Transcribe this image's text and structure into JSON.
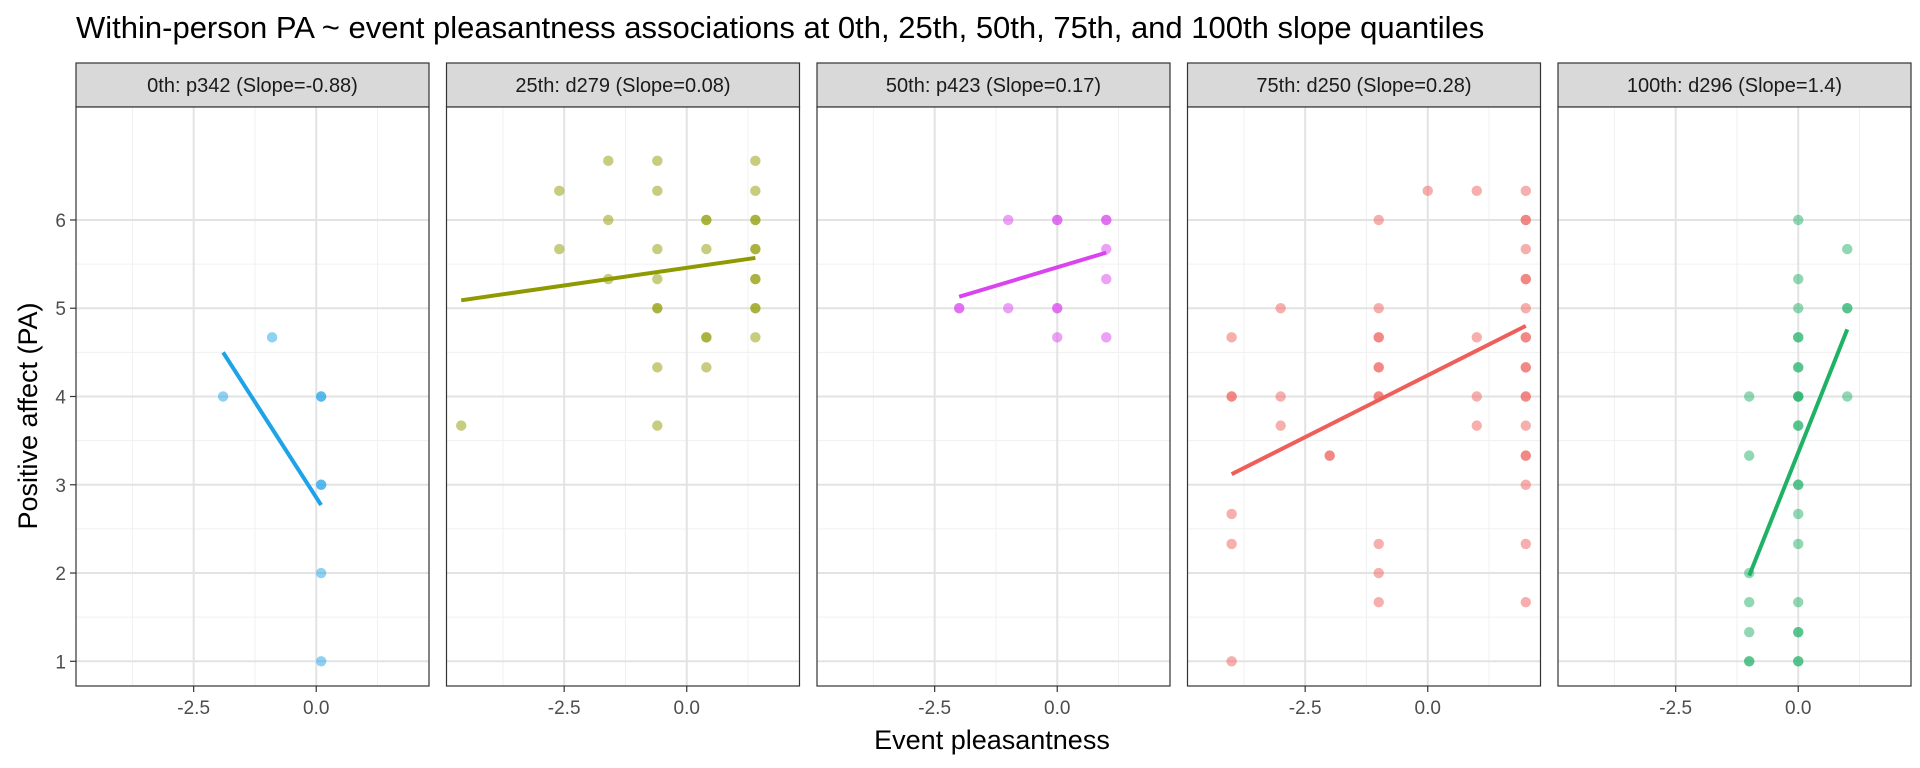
{
  "chart_data": {
    "type": "scatter",
    "title": "Within-person PA ~ event pleasantness associations at 0th, 25th, 50th, 75th, and 100th slope quantiles",
    "xlabel": "Event pleasantness",
    "ylabel": "Positive affect (PA)",
    "xlim": [
      -4.9,
      2.3
    ],
    "ylim": [
      0.72,
      7.28
    ],
    "x_ticks": [
      -2.5,
      0.0
    ],
    "x_tick_labels": [
      "-2.5",
      "0.0"
    ],
    "y_ticks": [
      1,
      2,
      3,
      4,
      5,
      6
    ],
    "y_tick_labels": [
      "1",
      "2",
      "3",
      "4",
      "5",
      "6"
    ],
    "grid": true,
    "legend": "none",
    "panels": [
      {
        "strip": "0th: p342 (Slope=-0.88)",
        "color": "#1FA3E8",
        "points": [
          [
            -1.9,
            4.0
          ],
          [
            -0.9,
            4.67
          ],
          [
            0.1,
            4.0
          ],
          [
            0.1,
            4.0
          ],
          [
            0.1,
            3.0
          ],
          [
            0.1,
            3.0
          ],
          [
            0.1,
            2.0
          ],
          [
            0.1,
            1.0
          ]
        ],
        "fit": [
          [
            -1.9,
            4.5
          ],
          [
            0.1,
            2.77
          ]
        ]
      },
      {
        "strip": "25th: d279 (Slope=0.08)",
        "color": "#8F9A00",
        "points": [
          [
            -4.6,
            3.67
          ],
          [
            -2.6,
            6.33
          ],
          [
            -2.6,
            5.67
          ],
          [
            -1.6,
            6.67
          ],
          [
            -1.6,
            6.0
          ],
          [
            -1.6,
            5.33
          ],
          [
            -0.6,
            6.67
          ],
          [
            -0.6,
            6.33
          ],
          [
            -0.6,
            5.67
          ],
          [
            -0.6,
            5.33
          ],
          [
            -0.6,
            5.0
          ],
          [
            -0.6,
            5.0
          ],
          [
            -0.6,
            4.33
          ],
          [
            -0.6,
            3.67
          ],
          [
            0.4,
            6.0
          ],
          [
            0.4,
            6.0
          ],
          [
            0.4,
            5.67
          ],
          [
            0.4,
            4.67
          ],
          [
            0.4,
            4.67
          ],
          [
            0.4,
            4.33
          ],
          [
            1.4,
            6.67
          ],
          [
            1.4,
            6.33
          ],
          [
            1.4,
            6.0
          ],
          [
            1.4,
            6.0
          ],
          [
            1.4,
            5.67
          ],
          [
            1.4,
            5.67
          ],
          [
            1.4,
            5.33
          ],
          [
            1.4,
            5.33
          ],
          [
            1.4,
            5.0
          ],
          [
            1.4,
            5.0
          ],
          [
            1.4,
            4.67
          ]
        ],
        "fit": [
          [
            -4.6,
            5.09
          ],
          [
            1.4,
            5.57
          ]
        ]
      },
      {
        "strip": "50th: p423 (Slope=0.17)",
        "color": "#D944EE",
        "points": [
          [
            -2.0,
            5.0
          ],
          [
            -2.0,
            5.0
          ],
          [
            -1.0,
            6.0
          ],
          [
            -1.0,
            5.0
          ],
          [
            0.0,
            6.0
          ],
          [
            0.0,
            6.0
          ],
          [
            0.0,
            5.0
          ],
          [
            0.0,
            5.0
          ],
          [
            0.0,
            4.67
          ],
          [
            1.0,
            6.0
          ],
          [
            1.0,
            6.0
          ],
          [
            1.0,
            5.67
          ],
          [
            1.0,
            5.33
          ],
          [
            1.0,
            4.67
          ]
        ],
        "fit": [
          [
            -2.0,
            5.13
          ],
          [
            1.0,
            5.63
          ]
        ]
      },
      {
        "strip": "75th: d250 (Slope=0.28)",
        "color": "#EE5F5B",
        "points": [
          [
            -4.0,
            4.67
          ],
          [
            -4.0,
            4.0
          ],
          [
            -4.0,
            4.0
          ],
          [
            -4.0,
            2.67
          ],
          [
            -4.0,
            2.33
          ],
          [
            -4.0,
            1.0
          ],
          [
            -3.0,
            5.0
          ],
          [
            -3.0,
            4.0
          ],
          [
            -3.0,
            3.67
          ],
          [
            -2.0,
            3.33
          ],
          [
            -2.0,
            3.33
          ],
          [
            -1.0,
            6.0
          ],
          [
            -1.0,
            5.0
          ],
          [
            -1.0,
            4.67
          ],
          [
            -1.0,
            4.67
          ],
          [
            -1.0,
            4.33
          ],
          [
            -1.0,
            4.33
          ],
          [
            -1.0,
            4.0
          ],
          [
            -1.0,
            4.0
          ],
          [
            -1.0,
            2.33
          ],
          [
            -1.0,
            2.0
          ],
          [
            -1.0,
            1.67
          ],
          [
            0.0,
            6.33
          ],
          [
            1.0,
            6.33
          ],
          [
            1.0,
            4.67
          ],
          [
            1.0,
            4.0
          ],
          [
            1.0,
            3.67
          ],
          [
            2.0,
            6.33
          ],
          [
            2.0,
            6.0
          ],
          [
            2.0,
            6.0
          ],
          [
            2.0,
            5.67
          ],
          [
            2.0,
            5.33
          ],
          [
            2.0,
            5.33
          ],
          [
            2.0,
            5.0
          ],
          [
            2.0,
            4.67
          ],
          [
            2.0,
            4.67
          ],
          [
            2.0,
            4.33
          ],
          [
            2.0,
            4.33
          ],
          [
            2.0,
            4.0
          ],
          [
            2.0,
            4.0
          ],
          [
            2.0,
            3.67
          ],
          [
            2.0,
            3.33
          ],
          [
            2.0,
            3.33
          ],
          [
            2.0,
            3.0
          ],
          [
            2.0,
            2.33
          ],
          [
            2.0,
            1.67
          ]
        ],
        "fit": [
          [
            -4.0,
            3.12
          ],
          [
            2.0,
            4.8
          ]
        ]
      },
      {
        "strip": "100th: d296 (Slope=1.4)",
        "color": "#1FB267",
        "points": [
          [
            -1.0,
            4.0
          ],
          [
            -1.0,
            3.33
          ],
          [
            -1.0,
            2.0
          ],
          [
            -1.0,
            1.67
          ],
          [
            -1.0,
            1.33
          ],
          [
            -1.0,
            1.0
          ],
          [
            -1.0,
            1.0
          ],
          [
            0.0,
            6.0
          ],
          [
            0.0,
            5.33
          ],
          [
            0.0,
            5.0
          ],
          [
            0.0,
            4.67
          ],
          [
            0.0,
            4.67
          ],
          [
            0.0,
            4.33
          ],
          [
            0.0,
            4.33
          ],
          [
            0.0,
            4.0
          ],
          [
            0.0,
            4.0
          ],
          [
            0.0,
            4.0
          ],
          [
            0.0,
            3.67
          ],
          [
            0.0,
            3.67
          ],
          [
            0.0,
            3.0
          ],
          [
            0.0,
            3.0
          ],
          [
            0.0,
            2.67
          ],
          [
            0.0,
            2.33
          ],
          [
            0.0,
            1.67
          ],
          [
            0.0,
            1.33
          ],
          [
            0.0,
            1.33
          ],
          [
            0.0,
            1.0
          ],
          [
            0.0,
            1.0
          ],
          [
            1.0,
            5.67
          ],
          [
            1.0,
            5.0
          ],
          [
            1.0,
            5.0
          ],
          [
            1.0,
            4.0
          ]
        ],
        "fit": [
          [
            -1.0,
            1.97
          ],
          [
            1.0,
            4.76
          ]
        ]
      }
    ]
  }
}
